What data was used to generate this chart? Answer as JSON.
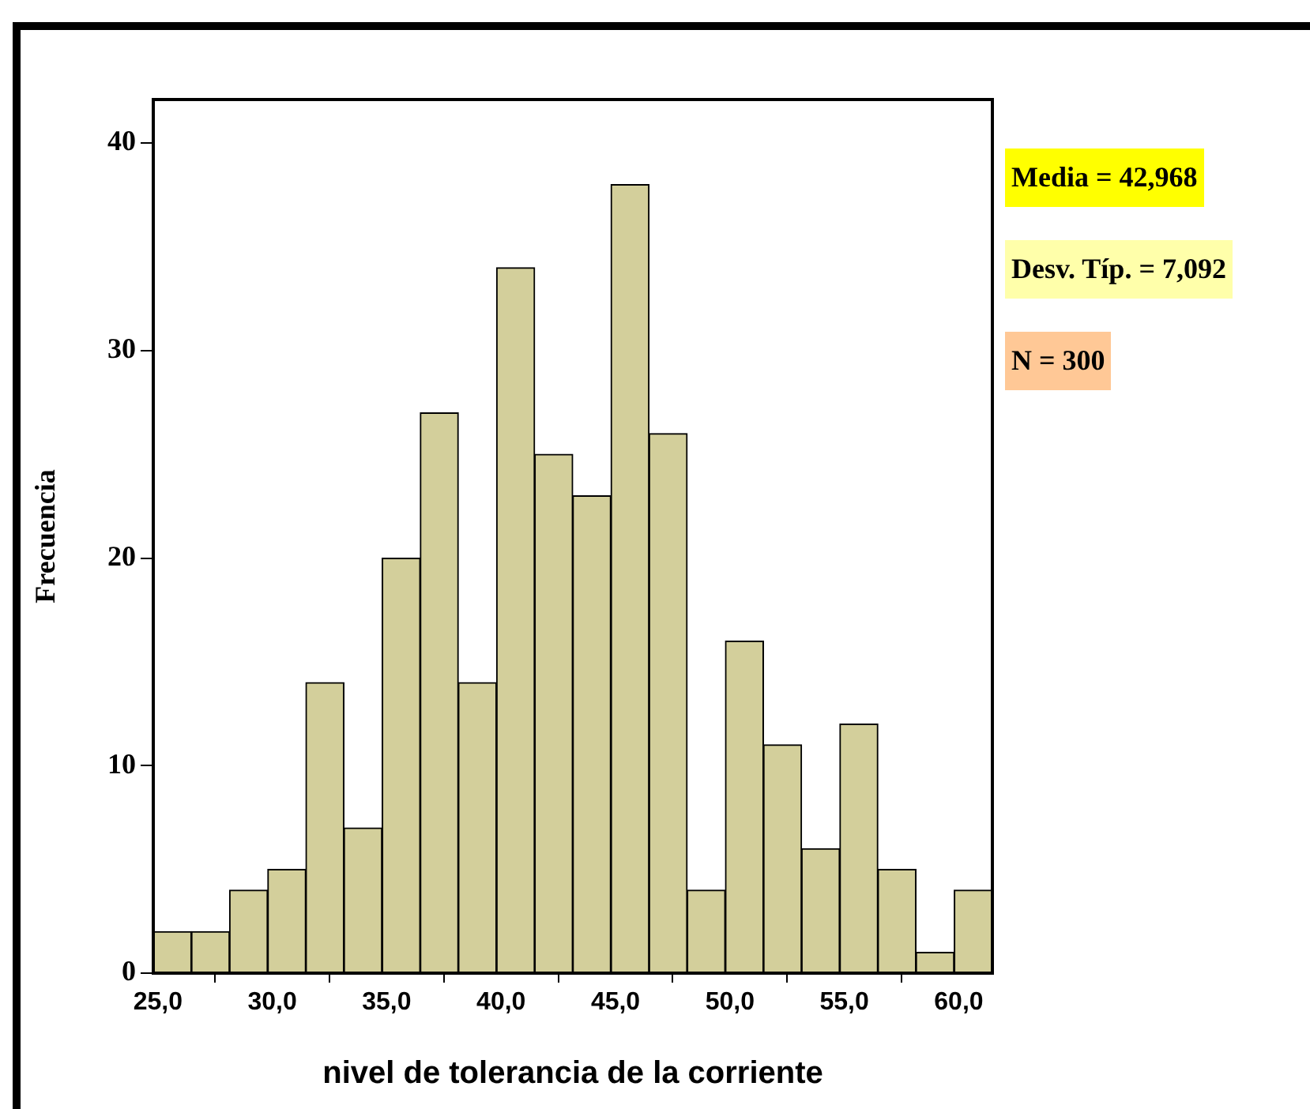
{
  "chart_data": {
    "type": "histogram",
    "xlabel": "nivel de tolerancia de la corriente",
    "ylabel": "Frecuencia",
    "bins": [
      24.8,
      26.47,
      28.13,
      29.8,
      31.47,
      33.13,
      34.8,
      36.47,
      38.13,
      39.8,
      41.47,
      43.13,
      44.8,
      46.47,
      48.13,
      49.8,
      51.47,
      53.13,
      54.8,
      56.47,
      58.13,
      59.8,
      61.47
    ],
    "values": [
      2,
      2,
      4,
      5,
      14,
      7,
      20,
      27,
      14,
      34,
      25,
      23,
      38,
      26,
      4,
      16,
      11,
      6,
      12,
      5,
      1,
      4
    ],
    "color": "#d3cf9b",
    "xlim": [
      24.8,
      61.47
    ],
    "xticks": [
      {
        "value": 25,
        "label": "25,0"
      },
      {
        "value": 30,
        "label": "30,0"
      },
      {
        "value": 35,
        "label": "35,0"
      },
      {
        "value": 40,
        "label": "40,0"
      },
      {
        "value": 45,
        "label": "45,0"
      },
      {
        "value": 50,
        "label": "50,0"
      },
      {
        "value": 55,
        "label": "55,0"
      },
      {
        "value": 60,
        "label": "60,0"
      }
    ],
    "ylim": [
      0,
      42.1
    ],
    "yticks": [
      0,
      10,
      20,
      30,
      40
    ],
    "grid": false,
    "legend": false,
    "annotations": [
      "Media = 42,968",
      "Desv. Típ. = 7,092",
      "N = 300"
    ]
  }
}
